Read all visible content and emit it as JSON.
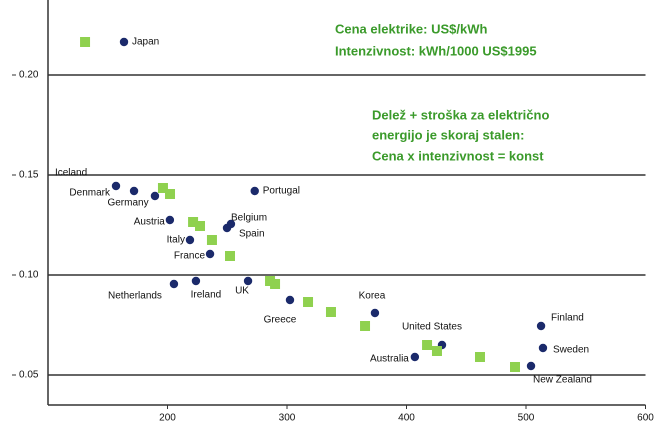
{
  "chart_data": {
    "type": "scatter",
    "annotations": [
      "Cena elektrike: US$/kWh",
      "Intenzivnost: kWh/1000 US$1995",
      "Delež + stroška za električno",
      "energijo je skoraj stalen:",
      "Cena x intenzivnost = konst"
    ],
    "xlim": [
      100,
      600
    ],
    "xticks": [
      200,
      300,
      400,
      500,
      600
    ],
    "ylim": [
      0.035,
      0.235
    ],
    "yticks": [
      {
        "value": 0.2,
        "label": "0.20"
      },
      {
        "value": 0.15,
        "label": "0.15"
      },
      {
        "value": 0.1,
        "label": "0.10"
      },
      {
        "value": 0.05,
        "label": "0.05"
      }
    ],
    "grid": true,
    "series": [
      {
        "color": "#1b2a6b",
        "marker": "circle",
        "labels": [
          "Japan",
          "Denmark",
          "Germany",
          "Iceland",
          "Austria",
          "Italy",
          "France",
          "Belgium",
          "Spain",
          "Portugal",
          "Netherlands",
          "Ireland",
          "UK",
          "Greece",
          "Korea",
          "United States",
          "Australia",
          "Finland",
          "Sweden",
          "New Zealand"
        ],
        "x": [
          163.6,
          156.9,
          172,
          189.5,
          202,
          218.8,
          235.6,
          249.8,
          253.1,
          273,
          205.4,
          223.8,
          267.4,
          302.5,
          373.6,
          429.7,
          407,
          512.6,
          514.2,
          504.2
        ],
        "values": [
          0.2165,
          0.1445,
          0.142,
          0.1395,
          0.1275,
          0.1175,
          0.1105,
          0.1235,
          0.1255,
          0.142,
          0.0955,
          0.097,
          0.097,
          0.0875,
          0.081,
          0.065,
          0.059,
          0.0745,
          0.0635,
          0.0545
        ]
      },
      {
        "color": "#8fd14f",
        "marker": "square",
        "x": [
          131,
          196.2,
          202.1,
          221.4,
          227.2,
          237.2,
          252.3,
          285.8,
          290,
          317.6,
          336.8,
          365.3,
          417.2,
          425.5,
          461.5,
          490.8
        ],
        "values": [
          0.2165,
          0.1435,
          0.1405,
          0.1265,
          0.1245,
          0.1175,
          0.1095,
          0.097,
          0.0955,
          0.0865,
          0.0815,
          0.0745,
          0.065,
          0.062,
          0.059,
          0.054
        ]
      }
    ]
  }
}
